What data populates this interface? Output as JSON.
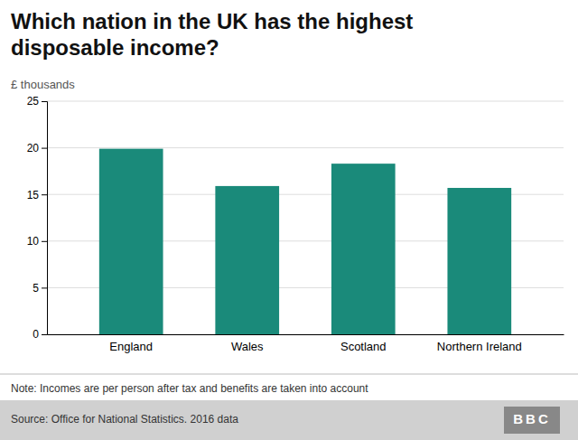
{
  "chart_data": {
    "type": "bar",
    "title": "Which nation in the UK has the highest\ndisposable income?",
    "ylabel": "£ thousands",
    "categories": [
      "England",
      "Wales",
      "Scotland",
      "Northern Ireland"
    ],
    "values": [
      19.9,
      15.9,
      18.3,
      15.7
    ],
    "color": "#1a8a7a",
    "ylim": [
      0,
      25
    ],
    "yticks": [
      0,
      5,
      10,
      15,
      20,
      25
    ],
    "grid": true,
    "annotations": [
      "Note: Incomes are per person after tax and benefits are taken into account",
      "Source: Office for National Statistics. 2016 data",
      "BBC"
    ]
  }
}
